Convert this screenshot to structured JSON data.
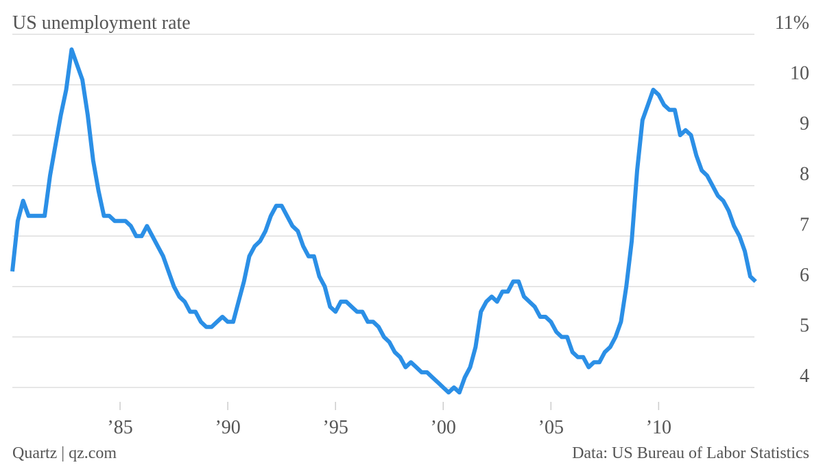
{
  "chart_data": {
    "type": "line",
    "title": "US unemployment rate",
    "credit": "Quartz | qz.com",
    "source": "Data: US Bureau of Labor Statistics",
    "x": [
      1980,
      1980.25,
      1980.5,
      1980.75,
      1981,
      1981.25,
      1981.5,
      1981.75,
      1982,
      1982.25,
      1982.5,
      1982.75,
      1983,
      1983.25,
      1983.5,
      1983.75,
      1984,
      1984.25,
      1984.5,
      1984.75,
      1985,
      1985.25,
      1985.5,
      1985.75,
      1986,
      1986.25,
      1986.5,
      1986.75,
      1987,
      1987.25,
      1987.5,
      1987.75,
      1988,
      1988.25,
      1988.5,
      1988.75,
      1989,
      1989.25,
      1989.5,
      1989.75,
      1990,
      1990.25,
      1990.5,
      1990.75,
      1991,
      1991.25,
      1991.5,
      1991.75,
      1992,
      1992.25,
      1992.5,
      1992.75,
      1993,
      1993.25,
      1993.5,
      1993.75,
      1994,
      1994.25,
      1994.5,
      1994.75,
      1995,
      1995.25,
      1995.5,
      1995.75,
      1996,
      1996.25,
      1996.5,
      1996.75,
      1997,
      1997.25,
      1997.5,
      1997.75,
      1998,
      1998.25,
      1998.5,
      1998.75,
      1999,
      1999.25,
      1999.5,
      1999.75,
      2000,
      2000.25,
      2000.5,
      2000.75,
      2001,
      2001.25,
      2001.5,
      2001.75,
      2002,
      2002.25,
      2002.5,
      2002.75,
      2003,
      2003.25,
      2003.5,
      2003.75,
      2004,
      2004.25,
      2004.5,
      2004.75,
      2005,
      2005.25,
      2005.5,
      2005.75,
      2006,
      2006.25,
      2006.5,
      2006.75,
      2007,
      2007.25,
      2007.5,
      2007.75,
      2008,
      2008.25,
      2008.5,
      2008.75,
      2009,
      2009.25,
      2009.5,
      2009.75,
      2010,
      2010.25,
      2010.5,
      2010.75,
      2011,
      2011.25,
      2011.5,
      2011.75,
      2012,
      2012.25,
      2012.5,
      2012.75,
      2013,
      2013.25,
      2013.5,
      2013.75,
      2014,
      2014.25,
      2014.5
    ],
    "series": [
      {
        "name": "US unemployment rate",
        "color": "#2b8fe6",
        "values": [
          6.3,
          7.3,
          7.7,
          7.4,
          7.4,
          7.4,
          7.4,
          8.2,
          8.8,
          9.4,
          9.9,
          10.7,
          10.4,
          10.1,
          9.4,
          8.5,
          7.9,
          7.4,
          7.4,
          7.3,
          7.3,
          7.3,
          7.2,
          7.0,
          7.0,
          7.2,
          7.0,
          6.8,
          6.6,
          6.3,
          6.0,
          5.8,
          5.7,
          5.5,
          5.5,
          5.3,
          5.2,
          5.2,
          5.3,
          5.4,
          5.3,
          5.3,
          5.7,
          6.1,
          6.6,
          6.8,
          6.9,
          7.1,
          7.4,
          7.6,
          7.6,
          7.4,
          7.2,
          7.1,
          6.8,
          6.6,
          6.6,
          6.2,
          6.0,
          5.6,
          5.5,
          5.7,
          5.7,
          5.6,
          5.5,
          5.5,
          5.3,
          5.3,
          5.2,
          5.0,
          4.9,
          4.7,
          4.6,
          4.4,
          4.5,
          4.4,
          4.3,
          4.3,
          4.2,
          4.1,
          4.0,
          3.9,
          4.0,
          3.9,
          4.2,
          4.4,
          4.8,
          5.5,
          5.7,
          5.8,
          5.7,
          5.9,
          5.9,
          6.1,
          6.1,
          5.8,
          5.7,
          5.6,
          5.4,
          5.4,
          5.3,
          5.1,
          5.0,
          5.0,
          4.7,
          4.6,
          4.6,
          4.4,
          4.5,
          4.5,
          4.7,
          4.8,
          5.0,
          5.3,
          6.0,
          6.9,
          8.3,
          9.3,
          9.6,
          9.9,
          9.8,
          9.6,
          9.5,
          9.5,
          9.0,
          9.1,
          9.0,
          8.6,
          8.3,
          8.2,
          8.0,
          7.8,
          7.7,
          7.5,
          7.2,
          7.0,
          6.7,
          6.2,
          6.1
        ]
      }
    ],
    "xlim": [
      1980,
      2014.7
    ],
    "xticks": [
      {
        "value": 1985,
        "label": "’85"
      },
      {
        "value": 1990,
        "label": "’90"
      },
      {
        "value": 1995,
        "label": "’95"
      },
      {
        "value": 2000,
        "label": "’00"
      },
      {
        "value": 2005,
        "label": "’05"
      },
      {
        "value": 2010,
        "label": "’10"
      }
    ],
    "ylim": [
      3.85,
      11
    ],
    "yticks": [
      4,
      5,
      6,
      7,
      8,
      9,
      10,
      {
        "value": 11,
        "label": "11%"
      }
    ],
    "grid": true
  }
}
